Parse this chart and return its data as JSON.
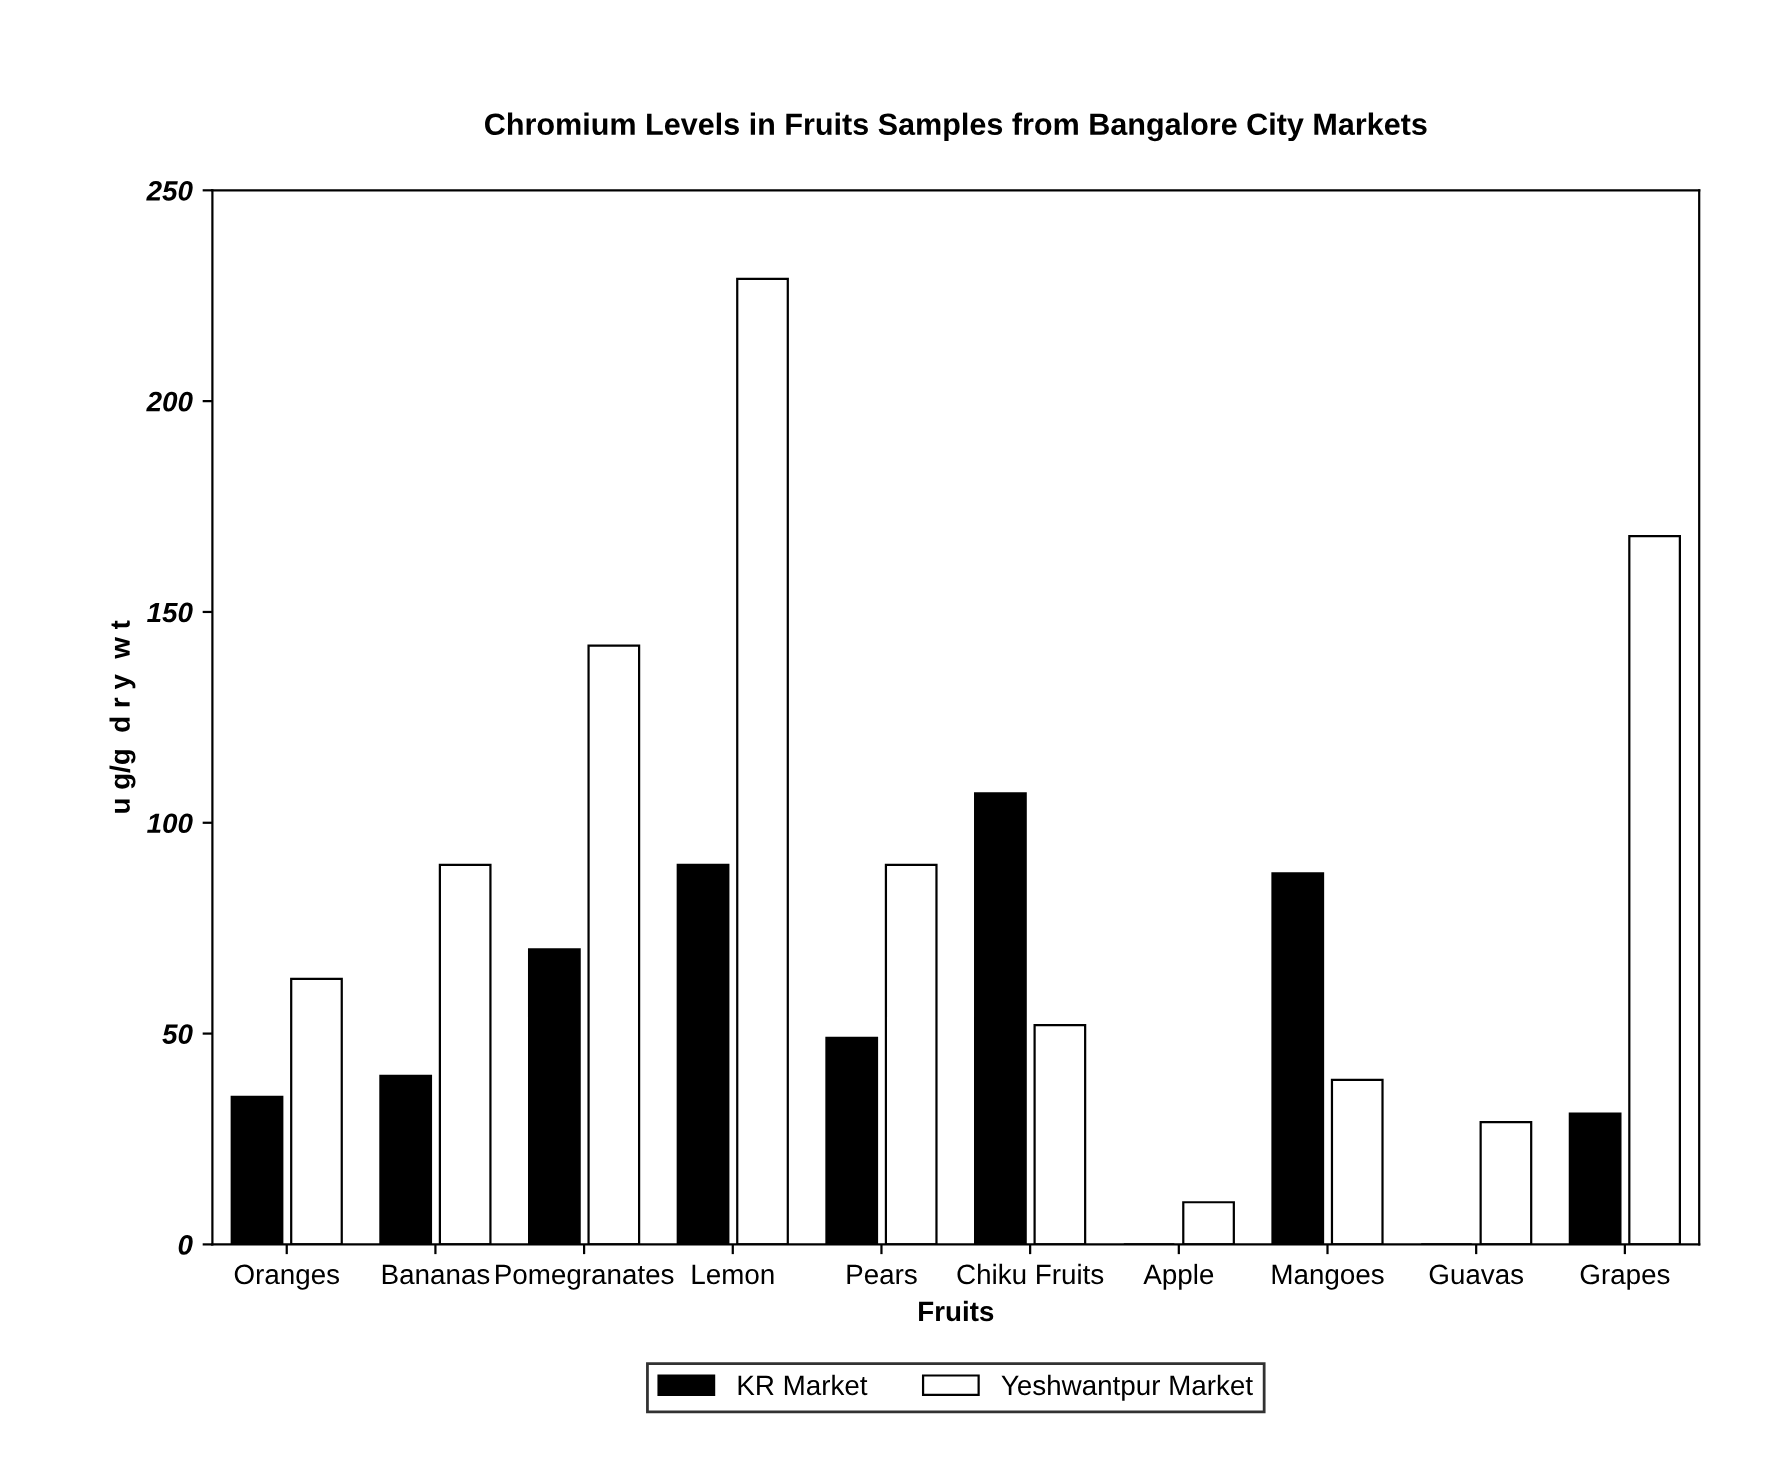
{
  "chart_data": {
    "type": "bar",
    "title": "Chromium Levels in Fruits Samples from Bangalore City Markets",
    "xlabel": "Fruits",
    "ylabel": "u g/g  d r y  w t",
    "categories": [
      "Oranges",
      "Bananas",
      "Pomegranates",
      "Lemon",
      "Pears",
      "Chiku Fruits",
      "Apple",
      "Mangoes",
      "Guavas",
      "Grapes"
    ],
    "series": [
      {
        "name": "KR Market",
        "color": "#000000",
        "values": [
          35,
          40,
          70,
          90,
          49,
          107,
          0,
          88,
          0,
          31
        ]
      },
      {
        "name": "Yeshwantpur Market",
        "color": "#ffffff",
        "values": [
          63,
          90,
          142,
          229,
          90,
          52,
          10,
          39,
          29,
          168
        ]
      }
    ],
    "ylim": [
      0,
      250
    ],
    "yticks": [
      0,
      50,
      100,
      150,
      200,
      250
    ],
    "grid": false,
    "legend": "bottom"
  }
}
